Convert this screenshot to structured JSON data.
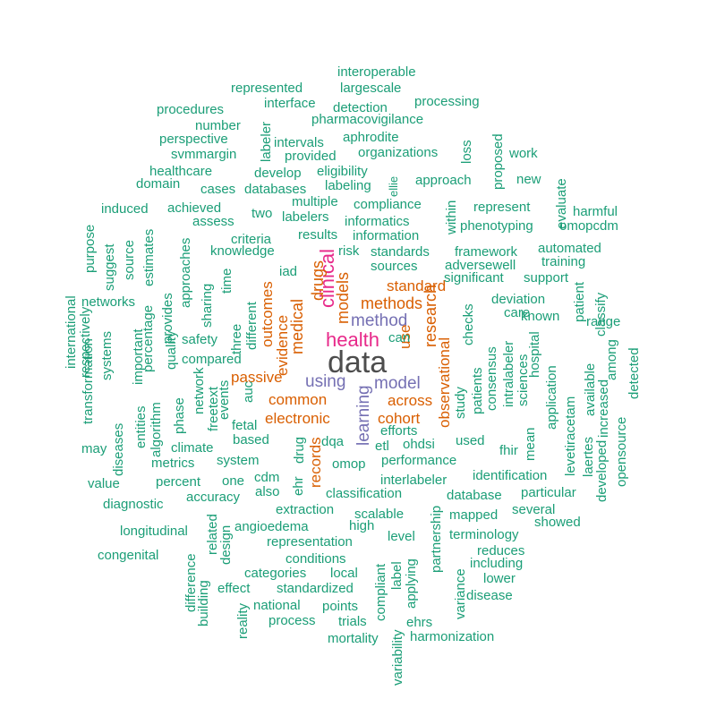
{
  "colors": {
    "teal": "#1b9e77",
    "orange": "#d95f02",
    "purple": "#7570b3",
    "magenta": "#e7298a",
    "gray": "#4d4d4d"
  },
  "words": [
    {
      "text": "data",
      "color": "gray"
    },
    {
      "text": "clinical",
      "color": "magenta"
    },
    {
      "text": "health",
      "color": "magenta"
    },
    {
      "text": "method",
      "color": "purple"
    },
    {
      "text": "using",
      "color": "purple"
    },
    {
      "text": "model",
      "color": "purple"
    },
    {
      "text": "learning",
      "color": "purple"
    },
    {
      "text": "methods",
      "color": "orange"
    },
    {
      "text": "research",
      "color": "orange"
    },
    {
      "text": "models",
      "color": "orange"
    },
    {
      "text": "medical",
      "color": "orange"
    },
    {
      "text": "drugs",
      "color": "orange"
    },
    {
      "text": "standard",
      "color": "orange"
    },
    {
      "text": "observational",
      "color": "orange"
    },
    {
      "text": "evidence",
      "color": "orange"
    },
    {
      "text": "outcomes",
      "color": "orange"
    },
    {
      "text": "common",
      "color": "orange"
    },
    {
      "text": "across",
      "color": "orange"
    },
    {
      "text": "electronic",
      "color": "orange"
    },
    {
      "text": "cohort",
      "color": "orange"
    },
    {
      "text": "records",
      "color": "orange"
    },
    {
      "text": "passive",
      "color": "orange"
    },
    {
      "text": "use",
      "color": "orange"
    },
    {
      "text": "interoperable",
      "color": "teal"
    },
    {
      "text": "represented",
      "color": "teal"
    },
    {
      "text": "largescale",
      "color": "teal"
    },
    {
      "text": "procedures",
      "color": "teal"
    },
    {
      "text": "interface",
      "color": "teal"
    },
    {
      "text": "detection",
      "color": "teal"
    },
    {
      "text": "processing",
      "color": "teal"
    },
    {
      "text": "number",
      "color": "teal"
    },
    {
      "text": "labeler",
      "color": "teal"
    },
    {
      "text": "pharmacovigilance",
      "color": "teal"
    },
    {
      "text": "perspective",
      "color": "teal"
    },
    {
      "text": "intervals",
      "color": "teal"
    },
    {
      "text": "aphrodite",
      "color": "teal"
    },
    {
      "text": "loss",
      "color": "teal"
    },
    {
      "text": "proposed",
      "color": "teal"
    },
    {
      "text": "svmmargin",
      "color": "teal"
    },
    {
      "text": "provided",
      "color": "teal"
    },
    {
      "text": "organizations",
      "color": "teal"
    },
    {
      "text": "work",
      "color": "teal"
    },
    {
      "text": "healthcare",
      "color": "teal"
    },
    {
      "text": "develop",
      "color": "teal"
    },
    {
      "text": "eligibility",
      "color": "teal"
    },
    {
      "text": "domain",
      "color": "teal"
    },
    {
      "text": "cases",
      "color": "teal"
    },
    {
      "text": "databases",
      "color": "teal"
    },
    {
      "text": "labeling",
      "color": "teal"
    },
    {
      "text": "ellie",
      "color": "teal"
    },
    {
      "text": "approach",
      "color": "teal"
    },
    {
      "text": "new",
      "color": "teal"
    },
    {
      "text": "multiple",
      "color": "teal"
    },
    {
      "text": "compliance",
      "color": "teal"
    },
    {
      "text": "within",
      "color": "teal"
    },
    {
      "text": "represent",
      "color": "teal"
    },
    {
      "text": "evaluate",
      "color": "teal"
    },
    {
      "text": "induced",
      "color": "teal"
    },
    {
      "text": "achieved",
      "color": "teal"
    },
    {
      "text": "two",
      "color": "teal"
    },
    {
      "text": "labelers",
      "color": "teal"
    },
    {
      "text": "informatics",
      "color": "teal"
    },
    {
      "text": "phenotyping",
      "color": "teal"
    },
    {
      "text": "harmful",
      "color": "teal"
    },
    {
      "text": "purpose",
      "color": "teal"
    },
    {
      "text": "assess",
      "color": "teal"
    },
    {
      "text": "results",
      "color": "teal"
    },
    {
      "text": "information",
      "color": "teal"
    },
    {
      "text": "omopcdm",
      "color": "teal"
    },
    {
      "text": "suggest",
      "color": "teal"
    },
    {
      "text": "source",
      "color": "teal"
    },
    {
      "text": "estimates",
      "color": "teal"
    },
    {
      "text": "criteria",
      "color": "teal"
    },
    {
      "text": "knowledge",
      "color": "teal"
    },
    {
      "text": "risk",
      "color": "teal"
    },
    {
      "text": "standards",
      "color": "teal"
    },
    {
      "text": "framework",
      "color": "teal"
    },
    {
      "text": "automated",
      "color": "teal"
    },
    {
      "text": "approaches",
      "color": "teal"
    },
    {
      "text": "time",
      "color": "teal"
    },
    {
      "text": "sources",
      "color": "teal"
    },
    {
      "text": "adversewell",
      "color": "teal"
    },
    {
      "text": "training",
      "color": "teal"
    },
    {
      "text": "iad",
      "color": "teal"
    },
    {
      "text": "significant",
      "color": "teal"
    },
    {
      "text": "support",
      "color": "teal"
    },
    {
      "text": "provides",
      "color": "teal"
    },
    {
      "text": "sharing",
      "color": "teal"
    },
    {
      "text": "networks",
      "color": "teal"
    },
    {
      "text": "deviation",
      "color": "teal"
    },
    {
      "text": "classify",
      "color": "teal"
    },
    {
      "text": "international",
      "color": "teal"
    },
    {
      "text": "percentage",
      "color": "teal"
    },
    {
      "text": "three",
      "color": "teal"
    },
    {
      "text": "different",
      "color": "teal"
    },
    {
      "text": "checks",
      "color": "teal"
    },
    {
      "text": "care",
      "color": "teal"
    },
    {
      "text": "known",
      "color": "teal"
    },
    {
      "text": "patient",
      "color": "teal"
    },
    {
      "text": "range",
      "color": "teal"
    },
    {
      "text": "transformation",
      "color": "teal"
    },
    {
      "text": "respectively",
      "color": "teal"
    },
    {
      "text": "systems",
      "color": "teal"
    },
    {
      "text": "important",
      "color": "teal"
    },
    {
      "text": "quality",
      "color": "teal"
    },
    {
      "text": "safety",
      "color": "teal"
    },
    {
      "text": "can",
      "color": "teal"
    },
    {
      "text": "consensus",
      "color": "teal"
    },
    {
      "text": "intralabeler",
      "color": "teal"
    },
    {
      "text": "hospital",
      "color": "teal"
    },
    {
      "text": "among",
      "color": "teal"
    },
    {
      "text": "compared",
      "color": "teal"
    },
    {
      "text": "application",
      "color": "teal"
    },
    {
      "text": "levetiracetam",
      "color": "teal"
    },
    {
      "text": "available",
      "color": "teal"
    },
    {
      "text": "increased",
      "color": "teal"
    },
    {
      "text": "detected",
      "color": "teal"
    },
    {
      "text": "entities",
      "color": "teal"
    },
    {
      "text": "phase",
      "color": "teal"
    },
    {
      "text": "network",
      "color": "teal"
    },
    {
      "text": "freetext",
      "color": "teal"
    },
    {
      "text": "events",
      "color": "teal"
    },
    {
      "text": "auc",
      "color": "teal"
    },
    {
      "text": "patients",
      "color": "teal"
    },
    {
      "text": "sciences",
      "color": "teal"
    },
    {
      "text": "algorithm",
      "color": "teal"
    },
    {
      "text": "study",
      "color": "teal"
    },
    {
      "text": "mean",
      "color": "teal"
    },
    {
      "text": "diseases",
      "color": "teal"
    },
    {
      "text": "may",
      "color": "teal"
    },
    {
      "text": "fetal",
      "color": "teal"
    },
    {
      "text": "efforts",
      "color": "teal"
    },
    {
      "text": "climate",
      "color": "teal"
    },
    {
      "text": "based",
      "color": "teal"
    },
    {
      "text": "drug",
      "color": "teal"
    },
    {
      "text": "dqa",
      "color": "teal"
    },
    {
      "text": "etl",
      "color": "teal"
    },
    {
      "text": "ohdsi",
      "color": "teal"
    },
    {
      "text": "used",
      "color": "teal"
    },
    {
      "text": "fhir",
      "color": "teal"
    },
    {
      "text": "laertes",
      "color": "teal"
    },
    {
      "text": "metrics",
      "color": "teal"
    },
    {
      "text": "system",
      "color": "teal"
    },
    {
      "text": "omop",
      "color": "teal"
    },
    {
      "text": "performance",
      "color": "teal"
    },
    {
      "text": "developed",
      "color": "teal"
    },
    {
      "text": "opensource",
      "color": "teal"
    },
    {
      "text": "value",
      "color": "teal"
    },
    {
      "text": "percent",
      "color": "teal"
    },
    {
      "text": "one",
      "color": "teal"
    },
    {
      "text": "cdm",
      "color": "teal"
    },
    {
      "text": "ehr",
      "color": "teal"
    },
    {
      "text": "interlabeler",
      "color": "teal"
    },
    {
      "text": "identification",
      "color": "teal"
    },
    {
      "text": "diagnostic",
      "color": "teal"
    },
    {
      "text": "accuracy",
      "color": "teal"
    },
    {
      "text": "also",
      "color": "teal"
    },
    {
      "text": "classification",
      "color": "teal"
    },
    {
      "text": "database",
      "color": "teal"
    },
    {
      "text": "particular",
      "color": "teal"
    },
    {
      "text": "extraction",
      "color": "teal"
    },
    {
      "text": "several",
      "color": "teal"
    },
    {
      "text": "longitudinal",
      "color": "teal"
    },
    {
      "text": "related",
      "color": "teal"
    },
    {
      "text": "angioedema",
      "color": "teal"
    },
    {
      "text": "scalable",
      "color": "teal"
    },
    {
      "text": "mapped",
      "color": "teal"
    },
    {
      "text": "showed",
      "color": "teal"
    },
    {
      "text": "design",
      "color": "teal"
    },
    {
      "text": "high",
      "color": "teal"
    },
    {
      "text": "partnership",
      "color": "teal"
    },
    {
      "text": "terminology",
      "color": "teal"
    },
    {
      "text": "representation",
      "color": "teal"
    },
    {
      "text": "level",
      "color": "teal"
    },
    {
      "text": "reduces",
      "color": "teal"
    },
    {
      "text": "congenital",
      "color": "teal"
    },
    {
      "text": "difference",
      "color": "teal"
    },
    {
      "text": "conditions",
      "color": "teal"
    },
    {
      "text": "including",
      "color": "teal"
    },
    {
      "text": "categories",
      "color": "teal"
    },
    {
      "text": "local",
      "color": "teal"
    },
    {
      "text": "compliant",
      "color": "teal"
    },
    {
      "text": "label",
      "color": "teal"
    },
    {
      "text": "variance",
      "color": "teal"
    },
    {
      "text": "lower",
      "color": "teal"
    },
    {
      "text": "building",
      "color": "teal"
    },
    {
      "text": "effect",
      "color": "teal"
    },
    {
      "text": "standardized",
      "color": "teal"
    },
    {
      "text": "applying",
      "color": "teal"
    },
    {
      "text": "disease",
      "color": "teal"
    },
    {
      "text": "variability",
      "color": "teal"
    },
    {
      "text": "reality",
      "color": "teal"
    },
    {
      "text": "national",
      "color": "teal"
    },
    {
      "text": "points",
      "color": "teal"
    },
    {
      "text": "process",
      "color": "teal"
    },
    {
      "text": "trials",
      "color": "teal"
    },
    {
      "text": "ehrs",
      "color": "teal"
    },
    {
      "text": "harmonization",
      "color": "teal"
    },
    {
      "text": "mortality",
      "color": "teal"
    }
  ]
}
